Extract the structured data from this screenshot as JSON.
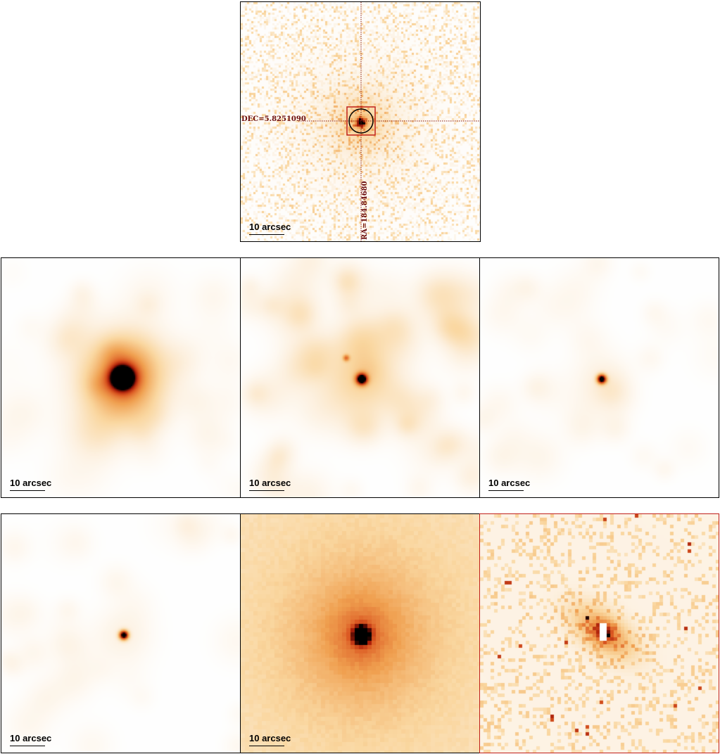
{
  "scalebar_label": "10 arcsec",
  "crosshair": {
    "dec_label": "DEC=5.8251090",
    "ra_label": "RA=184.84680"
  },
  "colors": {
    "frame": "#000000",
    "highlight_frame": "#c0201a",
    "crosshair": "#8a1a10",
    "label": "#6b0c0c"
  },
  "panels": [
    {
      "id": "top-center",
      "scalebar": "10 arcsec",
      "style": "noisy-pixel"
    },
    {
      "id": "row2-left",
      "scalebar": "10 arcsec",
      "style": "extended-smooth"
    },
    {
      "id": "row2-center",
      "scalebar": "10 arcsec",
      "style": "compact-smooth"
    },
    {
      "id": "row2-right",
      "scalebar": "10 arcsec",
      "style": "point-smooth"
    },
    {
      "id": "row3-left",
      "scalebar": "10 arcsec",
      "style": "point-smooth"
    },
    {
      "id": "row3-center",
      "scalebar": "10 arcsec",
      "style": "blocky-halo"
    },
    {
      "id": "row3-right",
      "scalebar": "",
      "style": "noisy-lobe"
    }
  ]
}
